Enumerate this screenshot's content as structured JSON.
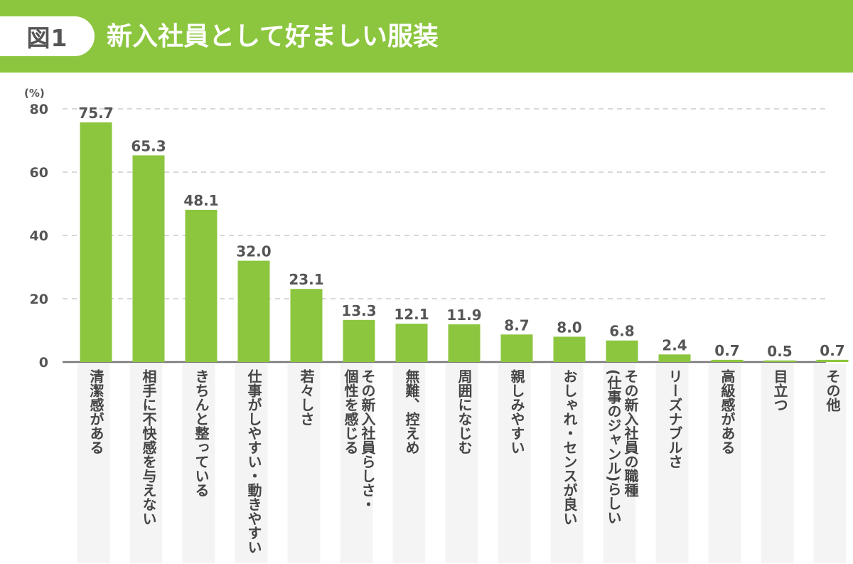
{
  "header": {
    "figure_label": "図1",
    "title": "新入社員として好ましい服装"
  },
  "colors": {
    "accent": "#8cc63f",
    "bar": "#8cc63f",
    "text": "#555555",
    "grid": "#cccccc"
  },
  "chart_data": {
    "type": "bar",
    "unit_label": "(%)",
    "ylim": [
      0,
      80
    ],
    "yticks": [
      0,
      20,
      40,
      60,
      80
    ],
    "grid": true,
    "categories": [
      "清潔感がある",
      "相手に不快感を与えない",
      "きちんと整っている",
      "仕事がしやすい・動きやすい",
      "若々しさ",
      "その新入社員らしさ・個性を感じる",
      "無難、控えめ",
      "周囲になじむ",
      "親しみやすい",
      "おしゃれ・センスが良い",
      "その新入社員の職種(仕事のジャンル)らしい",
      "リーズナブルさ",
      "高級感がある",
      "目立つ",
      "その他"
    ],
    "category_lines": [
      [
        "清潔感がある"
      ],
      [
        "相手に不快感を与えない"
      ],
      [
        "きちんと整っている"
      ],
      [
        "仕事がしやすい・動きやすい"
      ],
      [
        "若々しさ"
      ],
      [
        "その新入社員らしさ・",
        "個性を感じる"
      ],
      [
        "無難、控えめ"
      ],
      [
        "周囲になじむ"
      ],
      [
        "親しみやすい"
      ],
      [
        "おしゃれ・センスが良い"
      ],
      [
        "その新入社員の職種",
        "(仕事のジャンル)らしい"
      ],
      [
        "リーズナブルさ"
      ],
      [
        "高級感がある"
      ],
      [
        "目立つ"
      ],
      [
        "その他"
      ]
    ],
    "values": [
      75.7,
      65.3,
      48.1,
      32.0,
      23.1,
      13.3,
      12.1,
      11.9,
      8.7,
      8.0,
      6.8,
      2.4,
      0.7,
      0.5,
      0.7
    ],
    "value_labels": [
      "75.7",
      "65.3",
      "48.1",
      "32.0",
      "23.1",
      "13.3",
      "12.1",
      "11.9",
      "8.7",
      "8.0",
      "6.8",
      "2.4",
      "0.7",
      "0.5",
      "0.7"
    ]
  }
}
